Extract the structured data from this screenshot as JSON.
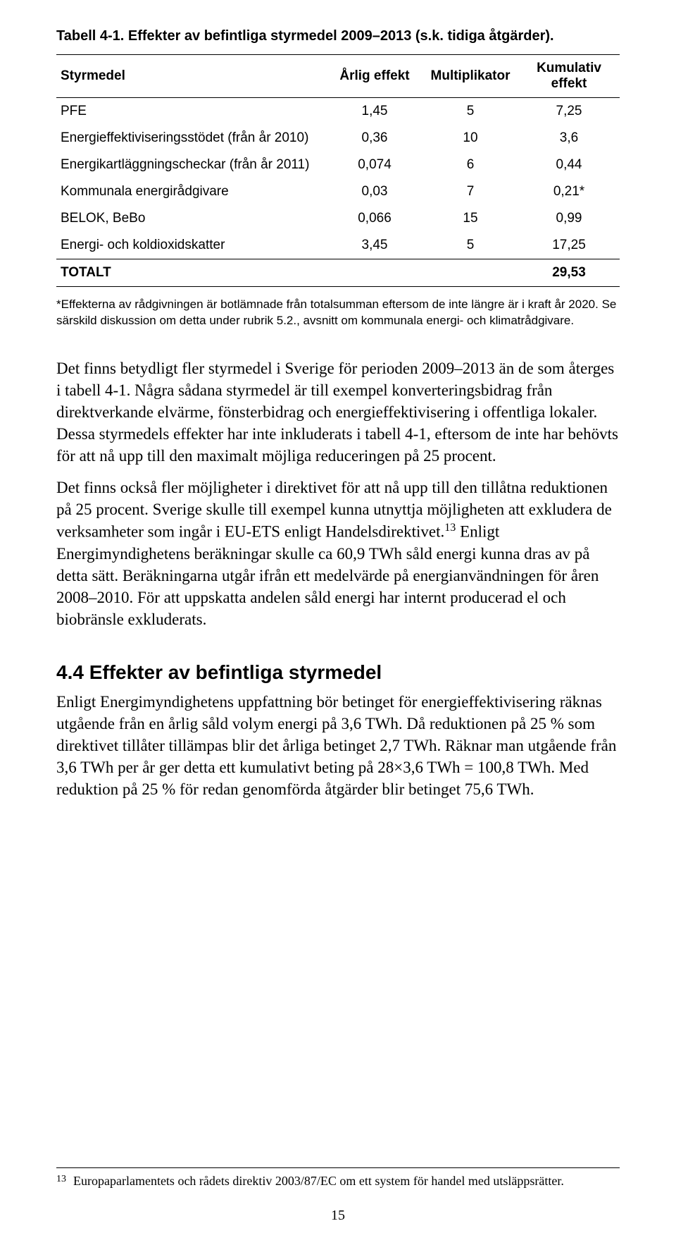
{
  "table": {
    "title": "Tabell 4-1. Effekter av befintliga styrmedel 2009–2013 (s.k. tidiga åtgärder).",
    "headers": {
      "c0": "Styrmedel",
      "c1": "Årlig effekt",
      "c2": "Multiplikator",
      "c3": "Kumulativ effekt"
    },
    "rows": [
      {
        "label": "PFE",
        "v1": "1,45",
        "v2": "5",
        "v3": "7,25"
      },
      {
        "label": "Energieffektiviseringsstödet (från år 2010)",
        "v1": "0,36",
        "v2": "10",
        "v3": "3,6"
      },
      {
        "label": "Energikartläggningscheckar (från år 2011)",
        "v1": "0,074",
        "v2": "6",
        "v3": "0,44"
      },
      {
        "label": "Kommunala energirådgivare",
        "v1": "0,03",
        "v2": "7",
        "v3": "0,21*"
      },
      {
        "label": "BELOK, BeBo",
        "v1": "0,066",
        "v2": "15",
        "v3": "0,99"
      },
      {
        "label": "Energi- och koldioxidskatter",
        "v1": "3,45",
        "v2": "5",
        "v3": "17,25"
      }
    ],
    "total": {
      "label": "TOTALT",
      "v3": "29,53"
    },
    "footnote": "*Effekterna av rådgivningen är botlämnade från totalsumman eftersom de inte längre är i kraft år 2020. Se särskild diskussion om detta under rubrik 5.2., avsnitt om kommunala energi- och klimatrådgivare."
  },
  "paragraphs": {
    "p1": "Det finns betydligt fler styrmedel i Sverige för perioden 2009–2013 än de som återges i tabell 4-1. Några sådana styrmedel är till exempel konverteringsbidrag från direktverkande elvärme, fönsterbidrag och energieffektivisering i offentliga lokaler. Dessa styrmedels effekter har inte inkluderats i tabell 4-1, eftersom de inte har behövts för att nå upp till den maximalt möjliga reduceringen på 25 procent.",
    "p2a": "Det finns också fler möjligheter i direktivet för att nå upp till den tillåtna reduktionen på 25 procent. Sverige skulle till exempel kunna utnyttja möjligheten att exkludera de verksamheter som ingår i EU-ETS enligt Handelsdirektivet.",
    "p2_sup": "13",
    "p2b": " Enligt Energimyndighetens beräkningar skulle ca 60,9 TWh såld energi kunna dras av på detta sätt. Beräkningarna utgår ifrån ett medelvärde på energianvändningen för åren 2008–2010. För att uppskatta andelen såld energi har internt producerad el och biobränsle exkluderats."
  },
  "section": {
    "heading": "4.4   Effekter av befintliga styrmedel",
    "p": "Enligt Energimyndighetens uppfattning bör betinget för energieffektivisering räknas utgående från en årlig såld volym energi på 3,6 TWh. Då reduktionen på 25 % som direktivet tillåter tillämpas blir det årliga betinget 2,7 TWh. Räknar man utgående från 3,6 TWh per år ger detta ett kumulativt beting på 28×3,6 TWh = 100,8 TWh. Med reduktion på 25 % för redan genomförda åtgärder blir betinget 75,6 TWh."
  },
  "footnote13": {
    "marker": "13",
    "text": "Europaparlamentets och rådets direktiv 2003/87/EC om ett system för handel med utsläppsrätter."
  },
  "pageNumber": "15"
}
